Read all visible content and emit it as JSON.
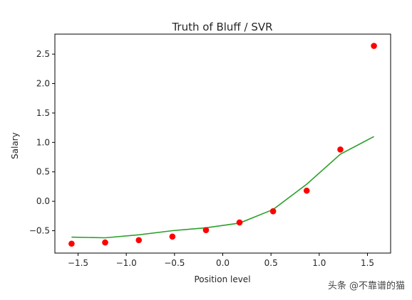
{
  "chart_data": {
    "type": "scatter",
    "title": "Truth of Bluff / SVR",
    "xlabel": "Position level",
    "ylabel": "Salary",
    "xlim": [
      -1.74,
      1.74
    ],
    "ylim": [
      -0.88,
      2.84
    ],
    "x_ticks": [
      -1.5,
      -1.0,
      -0.5,
      0.0,
      0.5,
      1.0,
      1.5
    ],
    "x_tick_labels": [
      "−1.5",
      "−1.0",
      "−0.5",
      "0.0",
      "0.5",
      "1.0",
      "1.5"
    ],
    "y_ticks": [
      -0.5,
      0.0,
      0.5,
      1.0,
      1.5,
      2.0,
      2.5
    ],
    "y_tick_labels": [
      "−0.5",
      "0.0",
      "0.5",
      "1.0",
      "1.5",
      "2.0",
      "2.5"
    ],
    "grid": false,
    "series": [
      {
        "type": "scatter",
        "color": "#ff0000",
        "x": [
          -1.567,
          -1.219,
          -0.87,
          -0.522,
          -0.174,
          0.174,
          0.522,
          0.87,
          1.219,
          1.567
        ],
        "y": [
          -0.72,
          -0.7,
          -0.66,
          -0.6,
          -0.49,
          -0.36,
          -0.17,
          0.18,
          0.88,
          2.64
        ]
      },
      {
        "type": "line",
        "color": "#2ca02c",
        "x": [
          -1.567,
          -1.219,
          -0.87,
          -0.522,
          -0.174,
          0.174,
          0.522,
          0.87,
          1.219,
          1.567
        ],
        "y": [
          -0.61,
          -0.62,
          -0.57,
          -0.5,
          -0.45,
          -0.37,
          -0.14,
          0.29,
          0.8,
          1.1
        ]
      }
    ]
  },
  "watermark": "头条 @不靠谱的猫"
}
